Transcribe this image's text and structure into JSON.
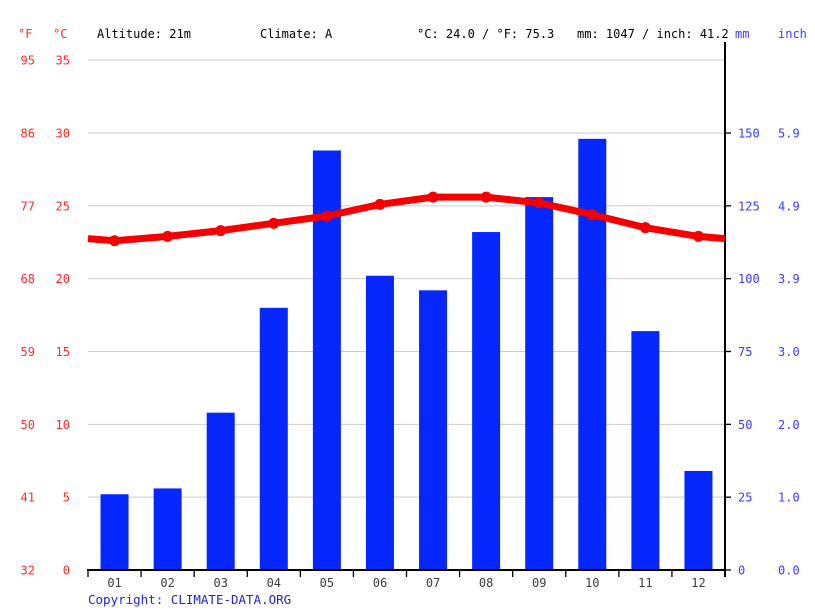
{
  "header": {
    "fahrenheit_label": "°F",
    "celsius_label": "°C",
    "altitude": "Altitude: 21m",
    "climate": "Climate: A",
    "temperature_summary": "°C: 24.0 / °F: 75.3",
    "precipitation_summary": "mm: 1047 / inch: 41.2",
    "mm_label": "mm",
    "inch_label": "inch"
  },
  "footer": {
    "copyright_prefix": "Copyright: ",
    "copyright_link": "CLIMATE-DATA.ORG"
  },
  "colors": {
    "bar": "#0627fb",
    "line": "#f40000",
    "red_label": "#ff2b2b",
    "blue_label": "#3b3bff",
    "grid": "#cccccc",
    "axis": "#000000",
    "month_label": "#3c3c3c"
  },
  "chart_data": {
    "type": "bar",
    "title": "Climate graph: monthly precipitation (bars) and average temperature (line)",
    "categories": [
      "01",
      "02",
      "03",
      "04",
      "05",
      "06",
      "07",
      "08",
      "09",
      "10",
      "11",
      "12"
    ],
    "series": [
      {
        "name": "precipitation_mm",
        "type": "bar",
        "values": [
          26,
          28,
          54,
          90,
          144,
          101,
          96,
          116,
          128,
          148,
          82,
          34
        ]
      },
      {
        "name": "temperature_c",
        "type": "line",
        "values": [
          22.6,
          22.9,
          23.3,
          23.8,
          24.3,
          25.1,
          25.6,
          25.6,
          25.2,
          24.4,
          23.5,
          22.9
        ]
      }
    ],
    "left_axis": {
      "c_values": [
        35,
        30,
        25,
        20,
        15,
        10,
        5,
        0
      ],
      "c_labels": [
        "35",
        "30",
        "25",
        "20",
        "15",
        "10",
        "5",
        "0"
      ],
      "f_labels": [
        "95",
        "86",
        "77",
        "68",
        "59",
        "50",
        "41",
        "32"
      ],
      "c_range": [
        0,
        35
      ]
    },
    "right_axis": {
      "mm_values": [
        150,
        125,
        100,
        75,
        50,
        25,
        0
      ],
      "mm_labels": [
        "150",
        "125",
        "100",
        "75",
        "50",
        "25",
        "0"
      ],
      "inch_labels": [
        "5.9",
        "4.9",
        "3.9",
        "3.0",
        "2.0",
        "1.0",
        "0.0"
      ],
      "mm_range": [
        0,
        150
      ]
    },
    "grid": true,
    "legend": "none"
  }
}
